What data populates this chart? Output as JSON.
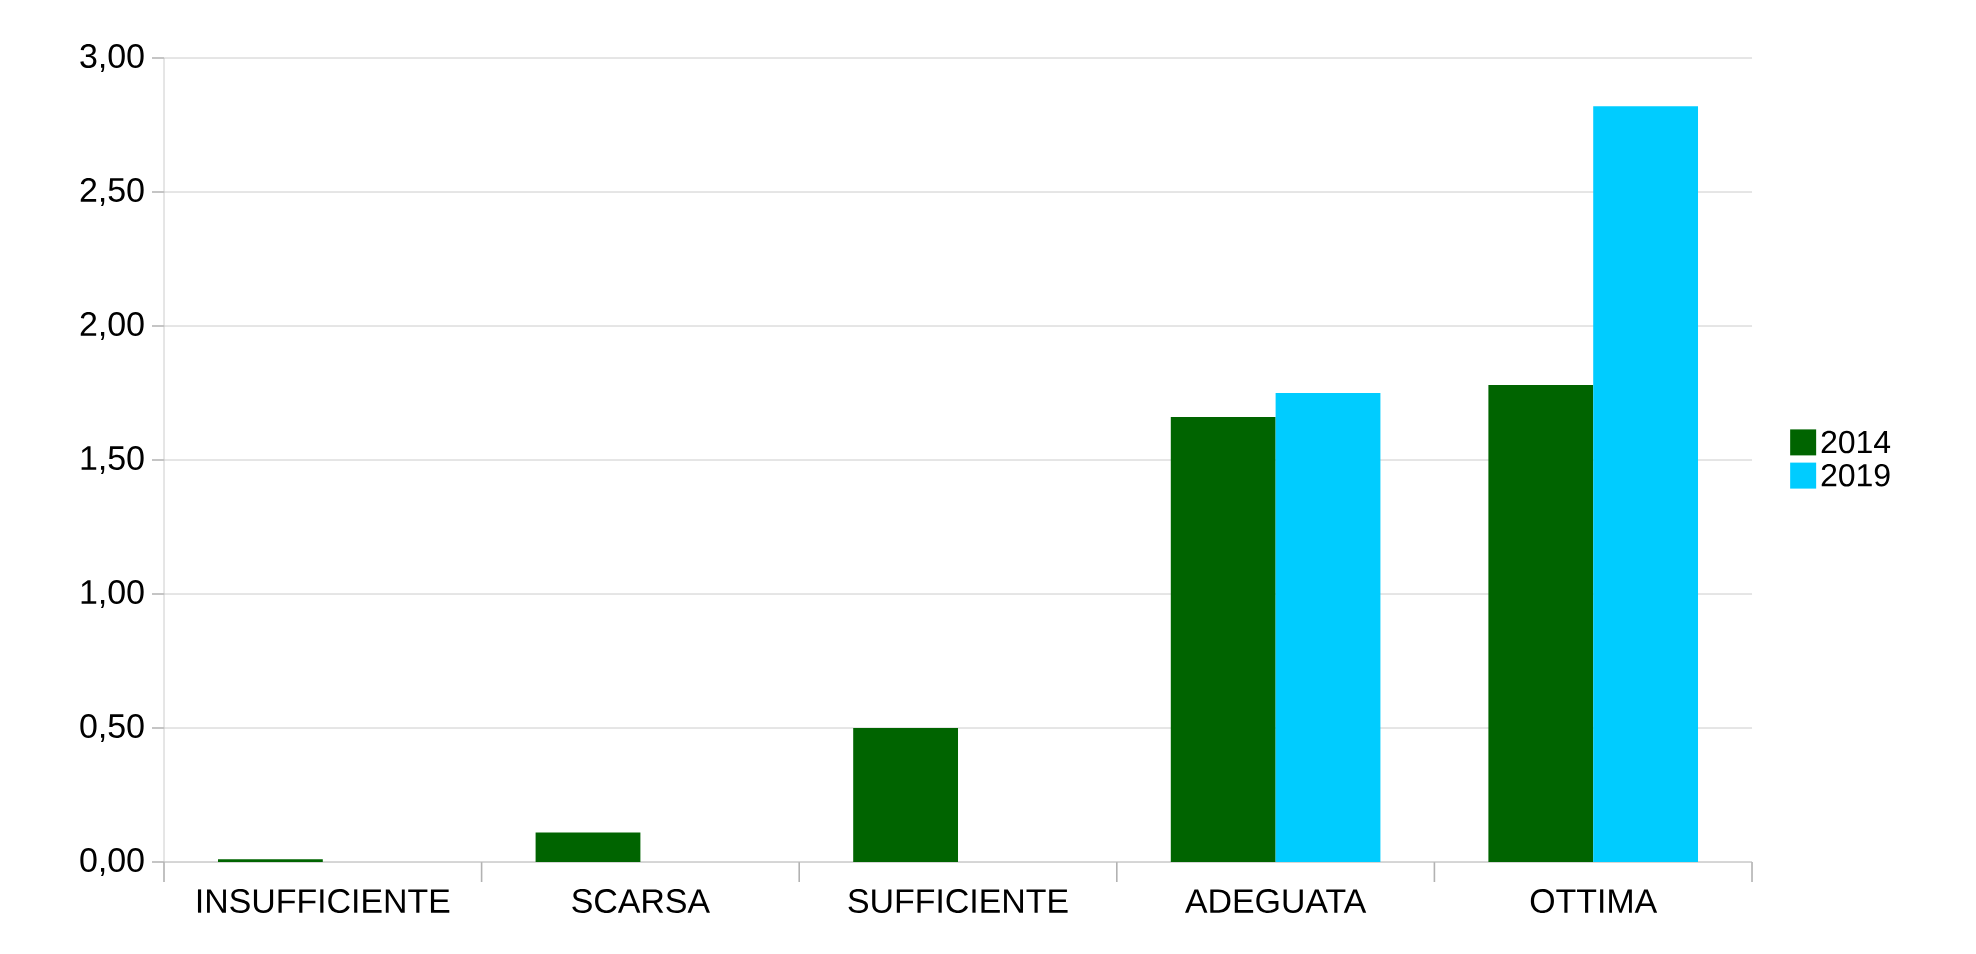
{
  "chart_data": {
    "type": "bar",
    "categories": [
      "INSUFFICIENTE",
      "SCARSA",
      "SUFFICIENTE",
      "ADEGUATA",
      "OTTIMA"
    ],
    "series": [
      {
        "name": "2014",
        "color": "#006400",
        "values": [
          0.01,
          0.11,
          0.5,
          1.66,
          1.78
        ]
      },
      {
        "name": "2019",
        "color": "#00ccff",
        "values": [
          0,
          0,
          0,
          1.75,
          2.82
        ]
      }
    ],
    "ylim": [
      0,
      3
    ],
    "yticks": [
      {
        "value": 0,
        "label": "0,00"
      },
      {
        "value": 0.5,
        "label": "0,50"
      },
      {
        "value": 1,
        "label": "1,00"
      },
      {
        "value": 1.5,
        "label": "1,50"
      },
      {
        "value": 2,
        "label": "2,00"
      },
      {
        "value": 2.5,
        "label": "2,50"
      },
      {
        "value": 3,
        "label": "3,00"
      }
    ],
    "grid": "y",
    "legend": "right"
  }
}
